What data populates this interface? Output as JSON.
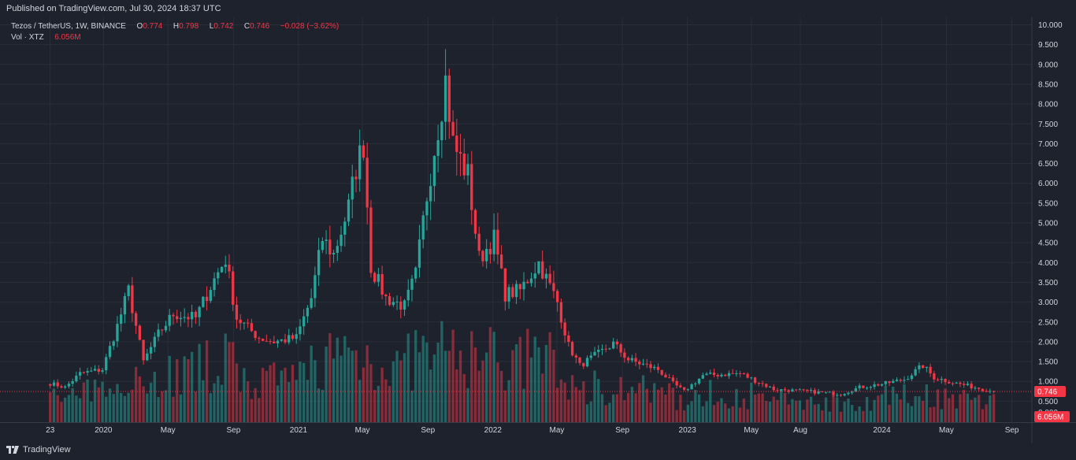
{
  "header": {
    "published": "Published on TradingView.com, Jul 30, 2024 18:37 UTC"
  },
  "legend": {
    "symbol": "Tezos / TetherUS, 1W, BINANCE",
    "o_label": "O",
    "o_value": "0.774",
    "h_label": "H",
    "h_value": "0.798",
    "l_label": "L",
    "l_value": "0.742",
    "c_label": "C",
    "c_value": "0.746",
    "change": "−0.028 (−3.62%)",
    "vol_label": "Vol · XTZ",
    "vol_value": "6.056M"
  },
  "footer": {
    "brand": "TradingView"
  },
  "colors": {
    "up": "#26a69a",
    "down": "#f23645",
    "background": "#1e222d",
    "grid": "#2a2e39",
    "text": "#d1d4dc"
  },
  "chart_data": {
    "type": "candlestick",
    "symbol": "XTZUSDT",
    "interval": "1W",
    "exchange": "BINANCE",
    "ylim": [
      0,
      10
    ],
    "y_ticks": [
      "0.500",
      "1.000",
      "1.500",
      "2.000",
      "2.500",
      "3.000",
      "3.500",
      "4.000",
      "4.500",
      "5.000",
      "5.500",
      "6.000",
      "6.500",
      "7.000",
      "7.500",
      "8.000",
      "8.500",
      "9.000",
      "9.500",
      "10.000"
    ],
    "x_ticks": [
      "23",
      "2020",
      "May",
      "Sep",
      "2021",
      "May",
      "Sep",
      "2022",
      "May",
      "Sep",
      "2023",
      "May",
      "Aug",
      "2024",
      "May",
      "Sep"
    ],
    "last_price": "0.746",
    "last_volume": "6.056M",
    "volume_scale_label": "0.000",
    "price_keypoints": [
      [
        "2019-09-23",
        0.95
      ],
      [
        "2019-10-21",
        0.85
      ],
      [
        "2019-11-18",
        1.2
      ],
      [
        "2019-12-30",
        1.3
      ],
      [
        "2020-01-27",
        2.4
      ],
      [
        "2020-02-17",
        3.3
      ],
      [
        "2020-03-16",
        1.5
      ],
      [
        "2020-04-13",
        2.2
      ],
      [
        "2020-05-11",
        2.7
      ],
      [
        "2020-06-22",
        2.6
      ],
      [
        "2020-07-20",
        3.4
      ],
      [
        "2020-08-17",
        4.1
      ],
      [
        "2020-09-07",
        2.6
      ],
      [
        "2020-10-19",
        2.1
      ],
      [
        "2020-11-16",
        2.0
      ],
      [
        "2020-12-28",
        2.1
      ],
      [
        "2021-01-25",
        3.1
      ],
      [
        "2021-02-15",
        4.6
      ],
      [
        "2021-03-08",
        4.2
      ],
      [
        "2021-04-05",
        5.4
      ],
      [
        "2021-04-19",
        6.4
      ],
      [
        "2021-05-03",
        7.0
      ],
      [
        "2021-05-17",
        3.9
      ],
      [
        "2021-06-14",
        3.1
      ],
      [
        "2021-07-19",
        2.9
      ],
      [
        "2021-08-09",
        3.7
      ],
      [
        "2021-08-30",
        5.7
      ],
      [
        "2021-09-13",
        6.9
      ],
      [
        "2021-10-04",
        8.6
      ],
      [
        "2021-10-18",
        7.0
      ],
      [
        "2021-11-15",
        6.2
      ],
      [
        "2021-12-06",
        4.1
      ],
      [
        "2022-01-03",
        4.6
      ],
      [
        "2022-01-24",
        3.2
      ],
      [
        "2022-02-21",
        3.3
      ],
      [
        "2022-03-28",
        4.0
      ],
      [
        "2022-05-02",
        3.0
      ],
      [
        "2022-05-23",
        1.9
      ],
      [
        "2022-06-13",
        1.4
      ],
      [
        "2022-08-15",
        1.95
      ],
      [
        "2022-09-12",
        1.55
      ],
      [
        "2022-11-07",
        1.3
      ],
      [
        "2022-12-05",
        0.95
      ],
      [
        "2022-12-26",
        0.75
      ],
      [
        "2023-01-30",
        1.15
      ],
      [
        "2023-04-10",
        1.2
      ],
      [
        "2023-06-12",
        0.8
      ],
      [
        "2023-08-14",
        0.75
      ],
      [
        "2023-10-16",
        0.68
      ],
      [
        "2023-11-20",
        0.85
      ],
      [
        "2024-01-08",
        0.95
      ],
      [
        "2024-02-12",
        1.05
      ],
      [
        "2024-03-18",
        1.4
      ],
      [
        "2024-04-08",
        1.1
      ],
      [
        "2024-05-20",
        0.95
      ],
      [
        "2024-07-29",
        0.746
      ]
    ]
  }
}
